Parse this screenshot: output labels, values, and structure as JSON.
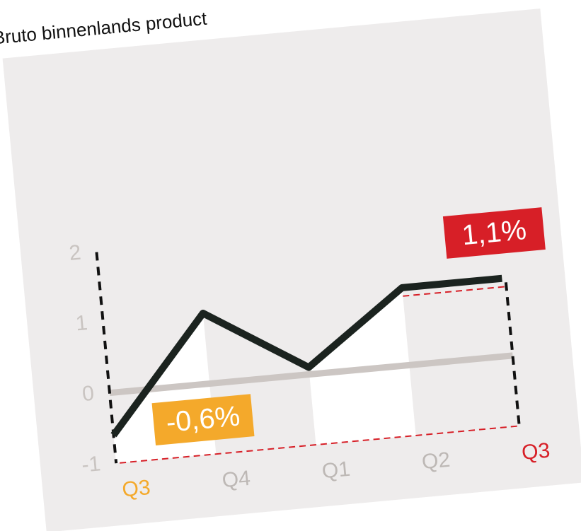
{
  "chart_data": {
    "type": "line",
    "title": "Bruto binnenlands product",
    "categories": [
      "Q3",
      "Q4",
      "Q1",
      "Q2",
      "Q3"
    ],
    "category_colors": [
      "#f4a92b",
      "#bdb8b5",
      "#bdb8b5",
      "#bdb8b5",
      "#d71f27"
    ],
    "values": [
      -0.6,
      1.0,
      0.1,
      1.1,
      1.1
    ],
    "value_labels": [
      "-0,6%",
      null,
      null,
      null,
      "1,1%"
    ],
    "value_label_colors": [
      "#f4a92b",
      null,
      null,
      null,
      "#d71f27"
    ],
    "color": "#1b231f",
    "ylim": [
      -1,
      2
    ],
    "yticks": [
      -1,
      0,
      1,
      2
    ]
  }
}
